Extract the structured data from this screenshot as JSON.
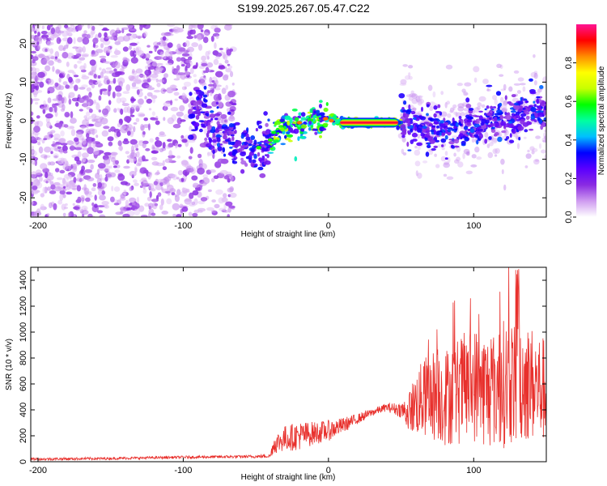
{
  "figure": {
    "title": "S199.2025.267.05.47.C22"
  },
  "colors": {
    "colormap": [
      "#ffffff",
      "#cf9bf0",
      "#8a2be2",
      "#5a00ff",
      "#0000ff",
      "#00bfff",
      "#00ffa0",
      "#00ff00",
      "#c8ff00",
      "#ffff00",
      "#ff8c00",
      "#ff0000",
      "#ff1493"
    ],
    "snr_line": "#e8302c"
  },
  "chart_data": [
    {
      "type": "heatmap",
      "xlabel": "Height of straight line (km)",
      "ylabel": "Frequency (Hz)",
      "xlim": [
        -205,
        150
      ],
      "ylim": [
        -25,
        25
      ],
      "x_ticks": [
        -200,
        -100,
        0,
        100
      ],
      "y_ticks": [
        -20,
        -10,
        0,
        10,
        20
      ],
      "grid": false,
      "colorbar": {
        "label": "Normalized spectral amplitude",
        "range": [
          0,
          1
        ],
        "ticks": [
          "0.0",
          "0.2",
          "0.4",
          "0.6",
          "0.8"
        ],
        "tick_values": [
          0.0,
          0.2,
          0.4,
          0.6,
          0.8
        ]
      },
      "ridge": {
        "x": [
          -90,
          -80,
          -70,
          -60,
          -50,
          -45,
          -40,
          -30,
          -20,
          -10,
          0,
          10,
          20,
          30,
          40,
          50,
          60,
          70,
          80,
          90,
          100,
          110,
          120,
          130,
          140,
          150
        ],
        "y": [
          2,
          -1,
          -4,
          -6,
          -7,
          -7,
          -5,
          -2,
          -1,
          0,
          1,
          -0.5,
          -0.5,
          -0.5,
          -0.5,
          -0.5,
          -1,
          -2,
          -3,
          -2.5,
          -2,
          -1,
          0,
          1,
          2,
          3
        ]
      }
    },
    {
      "type": "line",
      "xlabel": "Height of straight line (km)",
      "ylabel": "SNR (10 * v/v)",
      "xlim": [
        -205,
        150
      ],
      "ylim": [
        0,
        1500
      ],
      "x_ticks": [
        -200,
        -100,
        0,
        100
      ],
      "y_ticks": [
        0,
        200,
        400,
        600,
        800,
        1000,
        1200,
        1400
      ],
      "grid": false,
      "series_envelope": {
        "x": [
          -205,
          -150,
          -100,
          -50,
          -40,
          -38,
          -30,
          -20,
          -10,
          0,
          10,
          20,
          30,
          40,
          50,
          55,
          60,
          70,
          80,
          90,
          100,
          110,
          120,
          130,
          140,
          150
        ],
        "y": [
          20,
          25,
          35,
          40,
          45,
          130,
          180,
          200,
          220,
          240,
          280,
          330,
          380,
          420,
          400,
          380,
          450,
          520,
          500,
          550,
          600,
          550,
          600,
          650,
          600,
          550
        ],
        "noise": [
          10,
          10,
          10,
          12,
          15,
          70,
          100,
          110,
          90,
          80,
          60,
          40,
          30,
          30,
          60,
          150,
          250,
          350,
          380,
          420,
          450,
          450,
          500,
          500,
          450,
          400
        ]
      }
    }
  ]
}
